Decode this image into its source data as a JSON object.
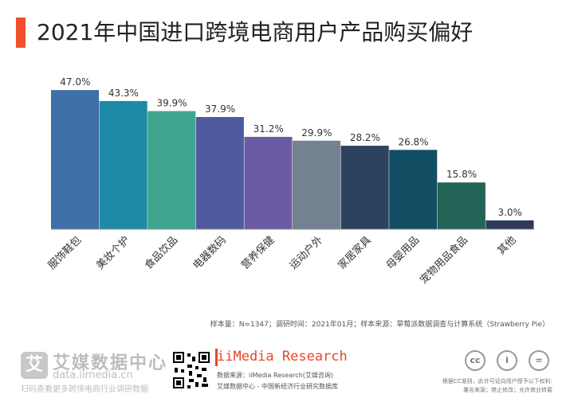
{
  "title": "2021年中国进口跨境电商用户产品购买偏好",
  "note": "样本量：N=1347；调研时间：2021年01月；样本来源：草莓派数据调查与计算系统（Strawberry Pie）",
  "chart_data": {
    "type": "bar",
    "categories": [
      "服饰鞋包",
      "美妆个护",
      "食品饮品",
      "电器数码",
      "营养保健",
      "运动户外",
      "家居家具",
      "母婴用品",
      "宠物用品食品",
      "其他"
    ],
    "values": [
      47.0,
      43.3,
      39.9,
      37.9,
      31.2,
      29.9,
      28.2,
      26.8,
      15.8,
      3.0
    ],
    "value_labels": [
      "47.0%",
      "43.3%",
      "39.9%",
      "37.9%",
      "31.2%",
      "29.9%",
      "28.2%",
      "26.8%",
      "15.8%",
      "3.0%"
    ],
    "colors": [
      "#3e6fa6",
      "#1e8aa6",
      "#3fa58f",
      "#4f5b9e",
      "#6a5aa3",
      "#748190",
      "#2c425f",
      "#124e63",
      "#226455",
      "#2f3a5a"
    ],
    "ylim": [
      0,
      50
    ],
    "grid": false,
    "legend": "none"
  },
  "footer": {
    "logo_glyph": "艾",
    "brand_cn": "艾媒数据中心",
    "brand_url": "data.iimedia.cn",
    "slogan": "扫码查看更多跨境电商行业调研数据",
    "imedia": "iiMedia Research",
    "source1": "数据来源：iiMedia Research(艾媒咨询)",
    "source2": "艾媒数据中心 - 中国新经济行业研究数据库",
    "cc_labels": [
      "cc",
      "i",
      "="
    ],
    "license1": "根据CC准则，此许可证向用户授予以下权利:",
    "license2": "署名来源；禁止修改；允许商业转载"
  }
}
